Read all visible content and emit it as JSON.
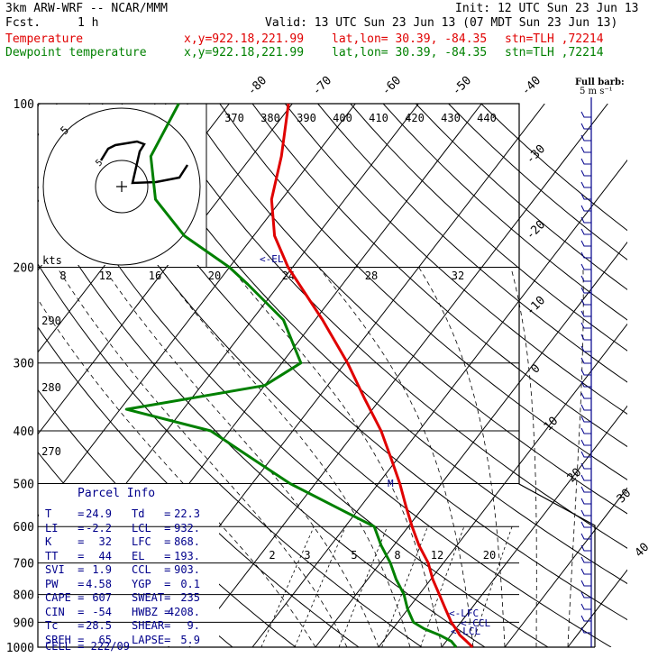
{
  "header": {
    "model": "3km ARW-WRF -- NCAR/MMM",
    "init": "Init: 12 UTC Sun 23 Jun 13",
    "fcst_label": "Fcst.",
    "fcst_value": "1 h",
    "valid": "Valid: 13 UTC Sun 23 Jun 13 (07 MDT Sun 23 Jun 13)",
    "temp_label": "Temperature",
    "dew_label": "Dewpoint temperature",
    "xy": "x,y=922.18,221.99",
    "latlon": "lat,lon= 30.39, -84.35",
    "stn": "stn=TLH ,72214"
  },
  "colors": {
    "temperature": "#e00000",
    "dewpoint": "#008000",
    "parcel": "#00008b",
    "grid": "#000000"
  },
  "chart_data": {
    "type": "line",
    "title": "Skew-T log-P",
    "pressure_levels": [
      100,
      200,
      300,
      400,
      500,
      600,
      700,
      800,
      900,
      1000
    ],
    "isotherm_labels": [
      "-80",
      "-70",
      "-60",
      "-50",
      "-40",
      "-30",
      "-20",
      "-10",
      "0",
      "10",
      "20",
      "30",
      "40"
    ],
    "theta_labels": [
      "370",
      "380",
      "390",
      "400",
      "410",
      "420",
      "430",
      "440"
    ],
    "theta_side_labels": [
      "290",
      "280",
      "270"
    ],
    "mixing_ratio_labels": [
      "2",
      "3",
      "5",
      "8",
      "12",
      "20"
    ],
    "hodo_labels": [
      "kts",
      "8",
      "12",
      "16",
      "20",
      "24",
      "28",
      "32"
    ],
    "hodo_ring_label": "5",
    "level_markers": [
      "<-EL",
      "<-LFC",
      "<-CCL",
      "<-LCL"
    ],
    "barb_legend": [
      "Full barb:",
      "5 m s⁻¹"
    ],
    "series": [
      {
        "name": "Temperature",
        "color": "#e00000",
        "points": [
          [
            1000,
            24.9
          ],
          [
            975,
            23.2
          ],
          [
            950,
            21.4
          ],
          [
            925,
            20.0
          ],
          [
            900,
            18.5
          ],
          [
            850,
            15.9
          ],
          [
            800,
            13.2
          ],
          [
            750,
            10.3
          ],
          [
            700,
            7.6
          ],
          [
            650,
            4.0
          ],
          [
            600,
            0.6
          ],
          [
            550,
            -2.9
          ],
          [
            500,
            -6.6
          ],
          [
            450,
            -11.0
          ],
          [
            400,
            -16.0
          ],
          [
            350,
            -22.4
          ],
          [
            300,
            -29.6
          ],
          [
            250,
            -38.8
          ],
          [
            200,
            -50.7
          ],
          [
            175,
            -56.7
          ],
          [
            150,
            -61.6
          ],
          [
            125,
            -65.3
          ],
          [
            100,
            -70.6
          ]
        ]
      },
      {
        "name": "Dewpoint temperature",
        "color": "#008000",
        "points": [
          [
            1000,
            22.3
          ],
          [
            975,
            20.8
          ],
          [
            950,
            18.2
          ],
          [
            925,
            15.0
          ],
          [
            900,
            12.5
          ],
          [
            850,
            9.9
          ],
          [
            800,
            7.6
          ],
          [
            750,
            4.5
          ],
          [
            700,
            1.6
          ],
          [
            650,
            -2.0
          ],
          [
            600,
            -5.4
          ],
          [
            550,
            -14.3
          ],
          [
            500,
            -24.0
          ],
          [
            450,
            -33.0
          ],
          [
            400,
            -43.0
          ],
          [
            365,
            -59.0
          ],
          [
            330,
            -40.0
          ],
          [
            300,
            -37.0
          ],
          [
            250,
            -45.0
          ],
          [
            215,
            -55.0
          ],
          [
            200,
            -60.0
          ],
          [
            175,
            -71.0
          ],
          [
            150,
            -80.0
          ],
          [
            125,
            -86.0
          ],
          [
            100,
            -88.0
          ]
        ]
      }
    ],
    "parcel_info": {
      "title": "Parcel Info",
      "rows": [
        {
          "k1": "T",
          "v1": "24.9",
          "k2": "Td",
          "v2": "22.3"
        },
        {
          "k1": "LI",
          "v1": "-2.2",
          "k2": "LCL",
          "v2": "932."
        },
        {
          "k1": "K",
          "v1": "32",
          "k2": "LFC",
          "v2": "868."
        },
        {
          "k1": "TT",
          "v1": "44",
          "k2": "EL",
          "v2": "193."
        },
        {
          "k1": "SVI",
          "v1": "1.9",
          "k2": "CCL",
          "v2": "903."
        },
        {
          "k1": "PW",
          "v1": "4.58",
          "k2": "YGP",
          "v2": "0.1"
        },
        {
          "k1": "CAPE",
          "v1": "607",
          "k2": "SWEAT",
          "v2": "235"
        },
        {
          "k1": "CIN",
          "v1": "-54",
          "k2": "HWBZ",
          "v2": "4208."
        },
        {
          "k1": "Tc",
          "v1": "28.5",
          "k2": "SHEAR",
          "v2": "9."
        },
        {
          "k1": "SREH",
          "v1": "65",
          "k2": "LAPSE",
          "v2": "5.9"
        }
      ],
      "cell": "CELL = 222/09"
    }
  }
}
